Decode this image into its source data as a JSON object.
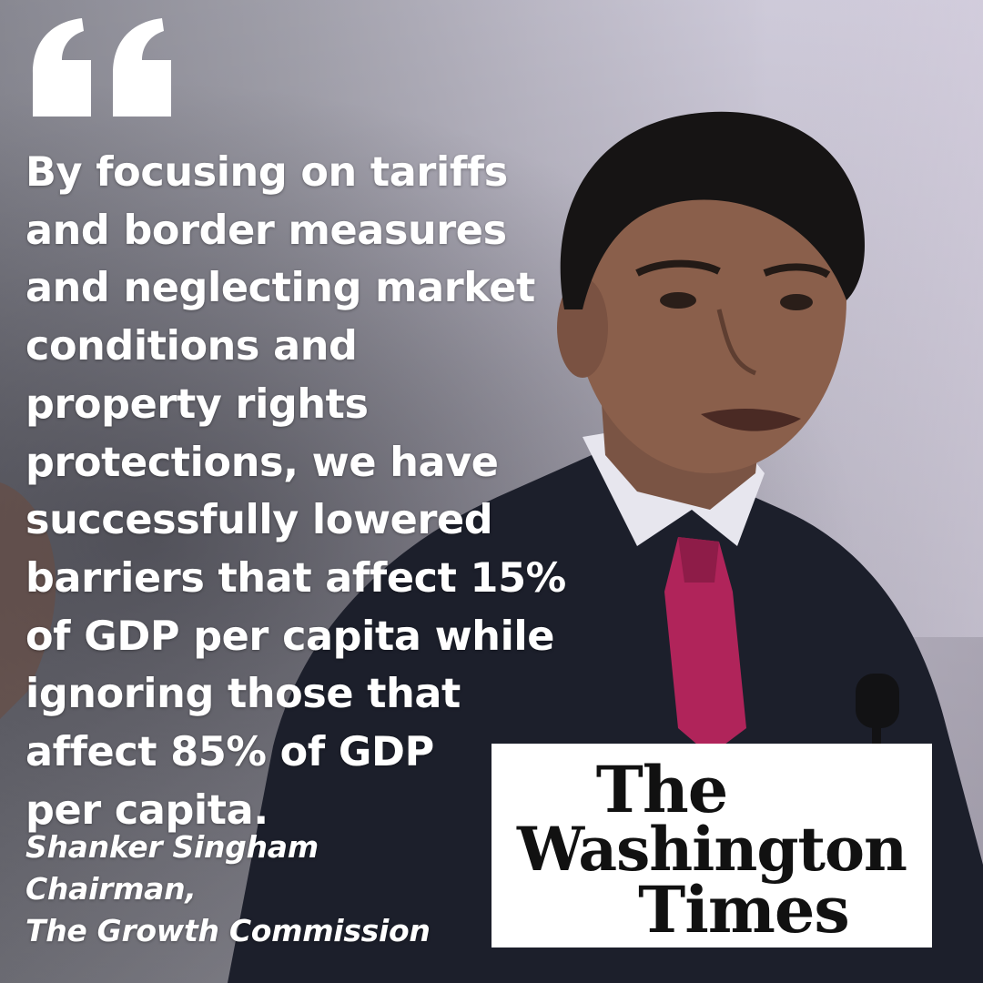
{
  "quote": {
    "lines": [
      "By focusing on tariffs",
      "and border measures",
      "and neglecting market",
      "conditions and",
      "property rights",
      "protections, we have",
      "successfully lowered",
      "barriers that affect 15%",
      "of GDP per capita while",
      "ignoring those that",
      "affect 85% of GDP",
      "per capita."
    ]
  },
  "attribution": {
    "name": "Shanker Singham",
    "title": "Chairman,",
    "organization": "The Growth Commission"
  },
  "logo": {
    "lines": [
      "The",
      "Washington",
      "Times"
    ]
  },
  "colors": {
    "text": "#ffffff",
    "logo_background": "#ffffff",
    "logo_text": "#111111",
    "tie": "#b0245a",
    "suit": "#1c1f2b"
  },
  "icons": {
    "quote_mark": "opening-quote-icon"
  }
}
